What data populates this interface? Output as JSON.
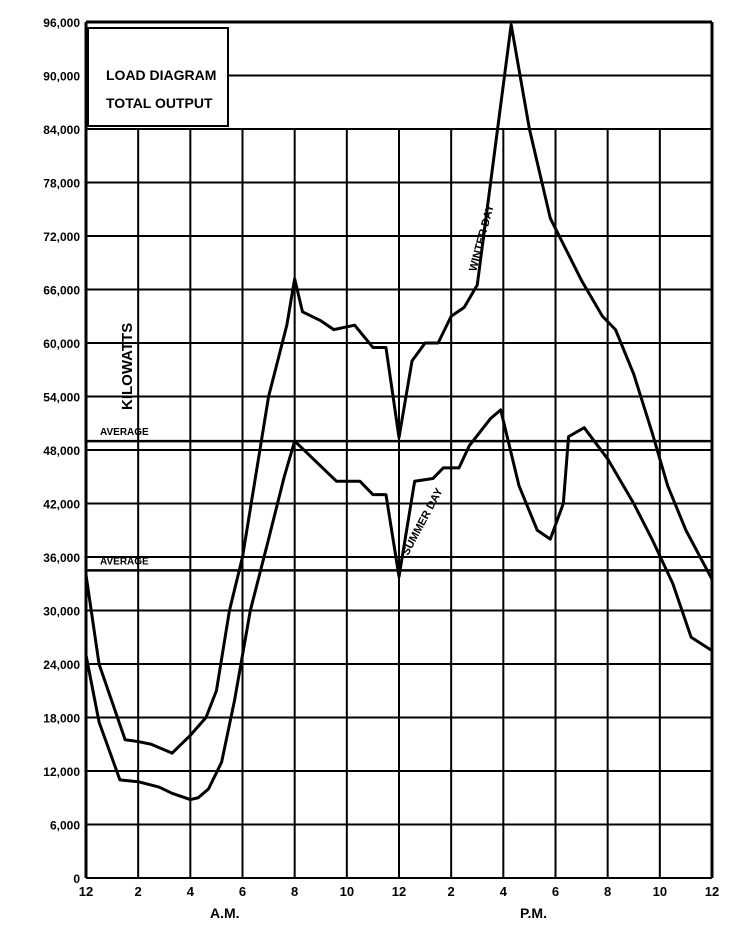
{
  "chart_data": {
    "type": "line",
    "title": [
      "LOAD DIAGRAM",
      "TOTAL OUTPUT"
    ],
    "ylabel": "KILOWATTS",
    "xlabel": "",
    "ylim": [
      0,
      96000
    ],
    "xlim": [
      0,
      24
    ],
    "grid": true,
    "y_ticks": [
      "0",
      "6,000",
      "12,000",
      "18,000",
      "24,000",
      "30,000",
      "36,000",
      "42,000",
      "48,000",
      "54,000",
      "60,000",
      "66,000",
      "72,000",
      "78,000",
      "84,000",
      "90,000",
      "96,000"
    ],
    "x_ticks": [
      "12",
      "2",
      "4",
      "6",
      "8",
      "10",
      "12",
      "2",
      "4",
      "6",
      "8",
      "10",
      "12"
    ],
    "x_period_labels": [
      "A.M.",
      "P.M."
    ],
    "series": [
      {
        "name": "WINTER DAY",
        "x": [
          0,
          0.5,
          1.5,
          2,
          2.5,
          3.3,
          4,
          4.6,
          5,
          5.5,
          6,
          7,
          7.7,
          8,
          8.3,
          9,
          9.5,
          10.3,
          11,
          11.5,
          12,
          12.5,
          13,
          13.5,
          14,
          14.5,
          15,
          16.3,
          17,
          17.8,
          19,
          19.8,
          20.3,
          21,
          21.7,
          22.3,
          23,
          24
        ],
        "y": [
          34000,
          24000,
          15500,
          15300,
          15000,
          14000,
          16000,
          18000,
          21000,
          30000,
          36000,
          54000,
          62000,
          67200,
          63500,
          62500,
          61500,
          62000,
          59500,
          59500,
          49400,
          58000,
          60000,
          60000,
          63000,
          64000,
          66500,
          95700,
          84000,
          74000,
          67000,
          63000,
          61500,
          56500,
          50000,
          44000,
          39000,
          33500
        ]
      },
      {
        "name": "SUMMER DAY",
        "x": [
          0,
          0.5,
          1.3,
          2,
          2.8,
          3.3,
          4,
          4.3,
          4.7,
          5.2,
          5.7,
          6.3,
          7,
          7.6,
          8,
          9.6,
          10.5,
          11,
          11.5,
          12,
          12.6,
          13.3,
          13.7,
          14.3,
          14.7,
          15.5,
          15.9,
          16.6,
          17.3,
          17.8,
          18.3,
          18.5,
          19.1,
          20,
          21,
          21.7,
          22.5,
          23.2,
          24
        ],
        "y": [
          25000,
          17500,
          11000,
          10800,
          10200,
          9500,
          8800,
          9000,
          10000,
          13000,
          20000,
          30000,
          38000,
          45000,
          49000,
          44500,
          44500,
          43000,
          43000,
          33800,
          44500,
          44800,
          46000,
          46000,
          48500,
          51500,
          52500,
          44000,
          39000,
          38000,
          42000,
          49500,
          50500,
          47000,
          42000,
          38000,
          33000,
          27000,
          25500
        ]
      }
    ],
    "averages": [
      {
        "label": "AVERAGE",
        "value": 49000
      },
      {
        "label": "AVERAGE",
        "value": 34500
      }
    ]
  }
}
